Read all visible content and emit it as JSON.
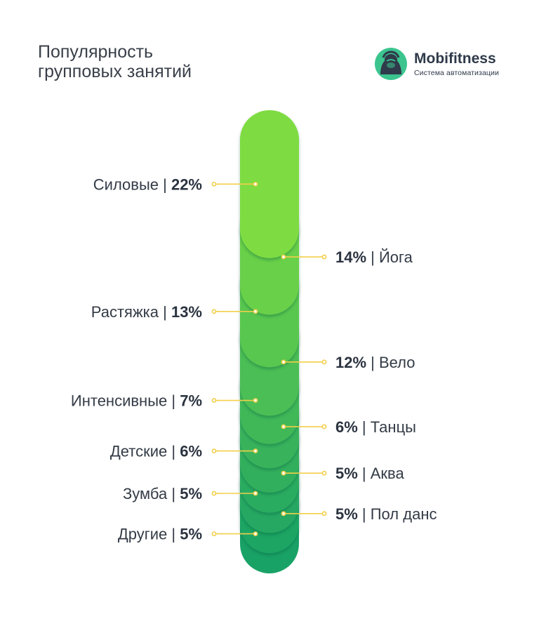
{
  "title_line1": "Популярность",
  "title_line2": "групповых занятий",
  "logo": {
    "name": "Mobifitness",
    "tagline": "Система автоматизации",
    "icon": "gorilla-logo-icon",
    "colors": [
      "#3cc48f",
      "#2f3a4a"
    ]
  },
  "colors": {
    "gradient_top": "#93e83a",
    "gradient_bottom": "#0e9b6a",
    "leader": "#f2cf4a",
    "text": "#2b3340"
  },
  "chart_data": {
    "type": "stacked-bar",
    "title": "Популярность групповых занятий",
    "categories": [
      "Силовые",
      "Йога",
      "Растяжка",
      "Вело",
      "Интенсивные",
      "Танцы",
      "Детские",
      "Аква",
      "Зумба",
      "Пол данс",
      "Другие"
    ],
    "values": [
      22,
      14,
      13,
      12,
      7,
      6,
      6,
      5,
      5,
      5,
      5
    ],
    "unit": "%",
    "label_side": [
      "left",
      "right",
      "left",
      "right",
      "left",
      "right",
      "left",
      "right",
      "left",
      "right",
      "left"
    ],
    "labels": [
      {
        "name": "Силовые",
        "pct": "22%"
      },
      {
        "name": "Йога",
        "pct": "14%"
      },
      {
        "name": "Растяжка",
        "pct": "13%"
      },
      {
        "name": "Вело",
        "pct": "12%"
      },
      {
        "name": "Интенсивные",
        "pct": "7%"
      },
      {
        "name": "Танцы",
        "pct": "6%"
      },
      {
        "name": "Детские",
        "pct": "6%"
      },
      {
        "name": "Аква",
        "pct": "5%"
      },
      {
        "name": "Зумба",
        "pct": "5%"
      },
      {
        "name": "Пол данс",
        "pct": "5%"
      },
      {
        "name": "Другие",
        "pct": "5%"
      }
    ]
  }
}
